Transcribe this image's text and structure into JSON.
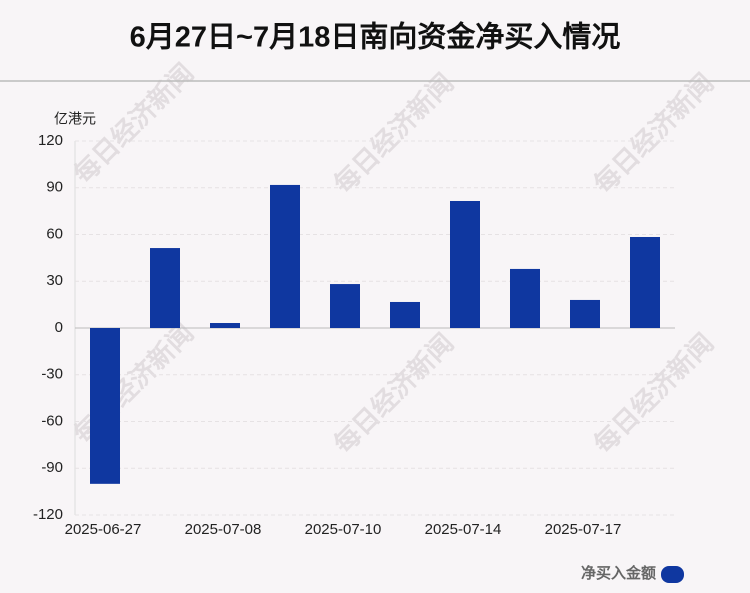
{
  "chart_data": {
    "type": "bar",
    "title": "6月27日~7月18日南向资金净买入情况",
    "y_label": "亿港元",
    "watermark": "每日经济新闻",
    "categories": [
      "2025-06-27",
      null,
      "2025-07-08",
      null,
      "2025-07-10",
      null,
      "2025-07-14",
      null,
      "2025-07-17",
      null
    ],
    "series": [
      {
        "name": "净买入金额",
        "color": "#0f37a0",
        "values": [
          -100,
          51.3,
          3.2,
          91.8,
          28.2,
          16.7,
          81.5,
          37.9,
          18,
          58.4
        ]
      }
    ],
    "ylim": [
      -120,
      120
    ],
    "yticks": [
      -120,
      -90,
      -60,
      -30,
      0,
      30,
      60,
      90,
      120
    ],
    "grid": true,
    "legend": "bottom-right"
  }
}
